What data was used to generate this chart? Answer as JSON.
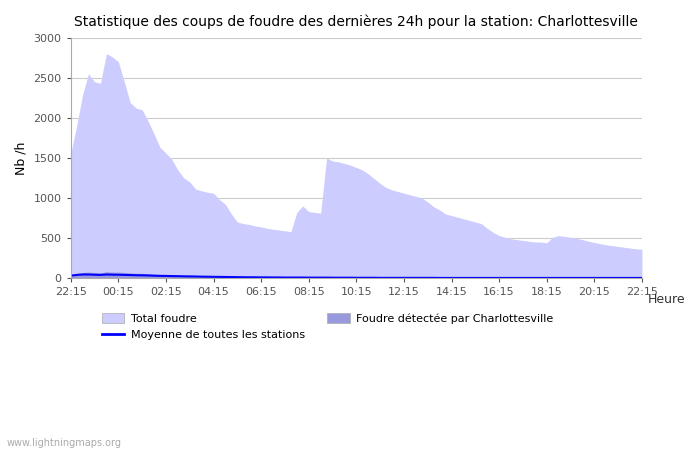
{
  "title": "Statistique des coups de foudre des dernières 24h pour la station: Charlottesville",
  "xlabel": "Heure",
  "ylabel": "Nb /h",
  "ylim": [
    0,
    3000
  ],
  "yticks": [
    0,
    500,
    1000,
    1500,
    2000,
    2500,
    3000
  ],
  "x_labels": [
    "22:15",
    "00:15",
    "02:15",
    "04:15",
    "06:15",
    "08:15",
    "10:15",
    "12:15",
    "14:15",
    "16:15",
    "18:15",
    "20:15",
    "22:15"
  ],
  "watermark": "www.lightningmaps.org",
  "total_foudre_color": "#ccccff",
  "foudre_detectee_color": "#9999dd",
  "moyenne_color": "#0000ff",
  "background_color": "#ffffff",
  "total_foudre": [
    1550,
    1900,
    2290,
    2550,
    2450,
    2430,
    2800,
    2760,
    2700,
    2450,
    2190,
    2120,
    2100,
    1960,
    1800,
    1630,
    1560,
    1480,
    1350,
    1250,
    1200,
    1110,
    1090,
    1070,
    1060,
    980,
    920,
    800,
    700,
    680,
    670,
    650,
    640,
    620,
    610,
    600,
    590,
    580,
    820,
    900,
    830,
    820,
    810,
    1500,
    1460,
    1450,
    1430,
    1410,
    1380,
    1350,
    1300,
    1240,
    1180,
    1130,
    1100,
    1080,
    1060,
    1040,
    1020,
    1000,
    950,
    890,
    850,
    800,
    780,
    760,
    740,
    720,
    700,
    680,
    620,
    570,
    530,
    510,
    490,
    480,
    470,
    460,
    450,
    450,
    440,
    510,
    530,
    520,
    510,
    495,
    480,
    460,
    445,
    430,
    415,
    405,
    395,
    385,
    375,
    365,
    360
  ],
  "foudre_detectee": [
    30,
    55,
    70,
    75,
    70,
    65,
    80,
    75,
    75,
    70,
    65,
    60,
    60,
    55,
    50,
    45,
    45,
    42,
    40,
    38,
    35,
    33,
    30,
    28,
    27,
    25,
    24,
    22,
    20,
    18,
    17,
    16,
    15,
    14,
    14,
    13,
    13,
    12,
    12,
    12,
    12,
    11,
    11,
    11,
    10,
    10,
    10,
    9,
    9,
    8,
    8,
    8,
    7,
    7,
    7,
    6,
    6,
    6,
    5,
    5,
    5,
    5,
    4,
    4,
    4,
    4,
    4,
    3,
    3,
    3,
    3,
    3,
    3,
    2,
    2,
    2,
    2,
    2,
    2,
    2,
    2,
    2,
    2,
    2,
    2,
    2,
    2,
    2,
    2,
    2,
    2,
    2,
    2,
    2,
    2,
    2,
    2
  ],
  "moyenne": [
    30,
    40,
    45,
    45,
    42,
    40,
    45,
    43,
    42,
    40,
    38,
    36,
    35,
    33,
    30,
    28,
    27,
    25,
    24,
    22,
    21,
    20,
    18,
    17,
    16,
    15,
    14,
    13,
    12,
    11,
    10,
    10,
    9,
    9,
    8,
    8,
    7,
    7,
    7,
    7,
    6,
    6,
    6,
    6,
    5,
    5,
    5,
    5,
    4,
    4,
    4,
    4,
    3,
    3,
    3,
    3,
    3,
    3,
    3,
    3,
    3,
    3,
    2,
    2,
    2,
    2,
    2,
    2,
    2,
    2,
    2,
    2,
    2,
    2,
    2,
    2,
    2,
    2,
    2,
    2,
    2,
    2,
    2,
    2,
    2,
    2,
    2,
    2,
    2,
    2,
    2,
    2,
    2,
    2,
    2,
    2,
    2
  ]
}
